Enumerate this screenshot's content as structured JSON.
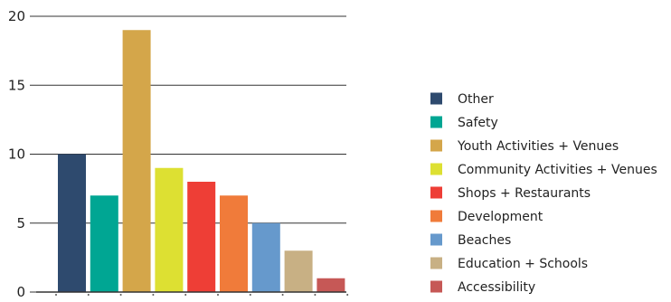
{
  "chart_data": {
    "type": "bar",
    "categories": [
      "Other",
      "Safety",
      "Youth Activities + Venues",
      "Community Activities + Venues",
      "Shops + Restaurants",
      "Development",
      "Beaches",
      "Education + Schools",
      "Accessibility"
    ],
    "values": [
      10,
      7,
      19,
      9,
      8,
      7,
      5,
      3,
      1
    ],
    "colors": [
      "#2e4a6e",
      "#00a693",
      "#d4a64a",
      "#dde032",
      "#ee3e36",
      "#f07b3a",
      "#6699cc",
      "#c8b084",
      "#c65856"
    ],
    "title": "",
    "xlabel": "",
    "ylabel": "",
    "ylim": [
      0,
      20
    ],
    "yticks": [
      0,
      5,
      10,
      15,
      20
    ],
    "grid": true,
    "legend_position": "right"
  }
}
